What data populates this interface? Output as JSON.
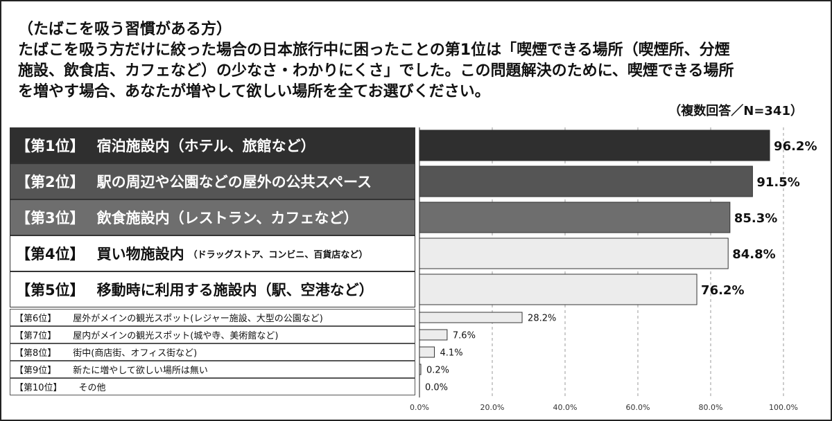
{
  "header": {
    "subtitle": "（たばこを吸う習慣がある方）",
    "question_lines": [
      "たばこを吸う方だけに絞った場合の日本旅行中に困ったことの第1位は「喫煙できる場所（喫煙所、分煙",
      "施設、飲食店、カフェなど）の少なさ・わかりにくさ」でした。この問題解決のために、喫煙できる場所",
      "を増やす場合、あなたが増やして欲しい場所を全てお選びください。"
    ],
    "note": "（複数回答／N=341）"
  },
  "labels": [
    {
      "rank": "【第1位】",
      "text": "宿泊施設内（ホテル、旅館など）",
      "sub": ""
    },
    {
      "rank": "【第2位】",
      "text": "駅の周辺や公園などの屋外の公共スペース",
      "sub": ""
    },
    {
      "rank": "【第3位】",
      "text": "飲食施設内（レストラン、カフェなど）",
      "sub": ""
    },
    {
      "rank": "【第4位】",
      "text": "買い物施設内",
      "sub": "（ドラッグストア、コンビニ、百貨店など）"
    },
    {
      "rank": "【第5位】",
      "text": "移動時に利用する施設内（駅、空港など）",
      "sub": ""
    },
    {
      "rank": "【第6位】",
      "text": "屋外がメインの観光スポット(レジャー施設、大型の公園など)",
      "sub": ""
    },
    {
      "rank": "【第7位】",
      "text": "屋内がメインの観光スポット(城や寺、美術館など)",
      "sub": ""
    },
    {
      "rank": "【第8位】",
      "text": "街中(商店街、オフィス街など)",
      "sub": ""
    },
    {
      "rank": "【第9位】",
      "text": "新たに増やして欲しい場所は無い",
      "sub": ""
    },
    {
      "rank": "【第10位】",
      "text": "その他",
      "sub": ""
    }
  ],
  "chart_data": {
    "type": "bar",
    "orientation": "horizontal",
    "categories": [
      "宿泊施設内（ホテル、旅館など）",
      "駅の周辺や公園などの屋外の公共スペース",
      "飲食施設内（レストラン、カフェなど）",
      "買い物施設内（ドラッグストア、コンビニ、百貨店など）",
      "移動時に利用する施設内（駅、空港など）",
      "屋外がメインの観光スポット(レジャー施設、大型の公園など)",
      "屋内がメインの観光スポット(城や寺、美術館など)",
      "街中(商店街、オフィス街など)",
      "新たに増やして欲しい場所は無い",
      "その他"
    ],
    "values": [
      96.2,
      91.5,
      85.3,
      84.8,
      76.2,
      28.2,
      7.6,
      4.1,
      0.2,
      0.0
    ],
    "value_labels": [
      "96.2%",
      "91.5%",
      "85.3%",
      "84.8%",
      "76.2%",
      "28.2%",
      "7.6%",
      "4.1%",
      "0.2%",
      "0.0%"
    ],
    "xlim": [
      0,
      100
    ],
    "xticks": [
      "0.0%",
      "20.0%",
      "40.0%",
      "60.0%",
      "80.0%",
      "100.0%"
    ],
    "grid": true,
    "colors": {
      "rank1": "#2f2f2f",
      "rank2": "#555555",
      "rank3": "#6e6e6e",
      "light": "#ececec",
      "bar_edge": "#333333"
    }
  }
}
